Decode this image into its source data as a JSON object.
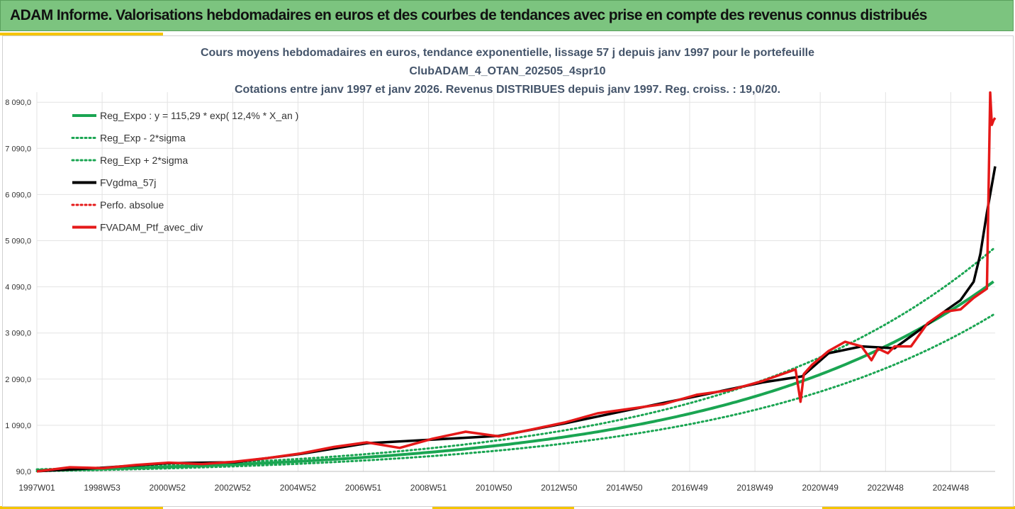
{
  "header": {
    "title": "ADAM Informe. Valorisations hebdomadaires en euros et des courbes de tendances avec prise en compte des revenus connus distribués"
  },
  "chart_data": {
    "type": "line",
    "title_lines": [
      "Cours moyens hebdomadaires  en euros, tendance exponentielle, lissage 57 j depuis janv 1997 pour le portefeuille",
      "ClubADAM_4_OTAN_202505_4spr10",
      "Cotations entre janv 1997 et janv 2026. Revenus DISTRIBUES depuis janv 1997. Reg. croiss. : 19,0/20."
    ],
    "x_tick_labels": [
      "1997W01",
      "1998W53",
      "2000W52",
      "2002W52",
      "2004W52",
      "2006W51",
      "2008W51",
      "2010W50",
      "2012W50",
      "2014W50",
      "2016W49",
      "2018W49",
      "2020W49",
      "2022W48",
      "2024W48"
    ],
    "x_range": [
      1997.0,
      2026.05
    ],
    "y_tick_labels": [
      "90,0",
      "1 090,0",
      "2 090,0",
      "3 090,0",
      "4 090,0",
      "5 090,0",
      "6 090,0",
      "7 090,0",
      "8 090,0"
    ],
    "ylim": [
      90,
      8600
    ],
    "grid": true,
    "legend_position": "top-left",
    "regression": {
      "a": 115.29,
      "rate": 0.124,
      "sigma_factor_minus": 0.83,
      "sigma_factor_plus": 1.17
    },
    "legend": [
      {
        "label": "Reg_Expo : y = 115,29 * exp( 12,4% *  X_an )",
        "color": "#1aa552",
        "style": "solid",
        "width": 4
      },
      {
        "label": "Reg_Exp - 2*sigma",
        "color": "#1aa552",
        "style": "dotted",
        "width": 3
      },
      {
        "label": "Reg_Exp + 2*sigma",
        "color": "#1aa552",
        "style": "dotted",
        "width": 3
      },
      {
        "label": "FVgdma_57j",
        "color": "#000000",
        "style": "solid",
        "width": 4
      },
      {
        "label": "Perfo. absolue",
        "color": "#e51919",
        "style": "dotted",
        "width": 3
      },
      {
        "label": "FVADAM_Ptf_avec_div",
        "color": "#e51919",
        "style": "solid",
        "width": 4
      }
    ],
    "series": [
      {
        "name": "FVADAM_Ptf_avec_div",
        "color": "#e51919",
        "x": [
          1997.0,
          1998.0,
          1999.0,
          2000.0,
          2001.0,
          2002.0,
          2003.0,
          2004.0,
          2005.0,
          2006.0,
          2007.0,
          2008.0,
          2009.0,
          2010.0,
          2011.0,
          2012.0,
          2013.0,
          2014.0,
          2015.0,
          2016.0,
          2017.0,
          2018.0,
          2019.0,
          2020.0,
          2020.15,
          2020.25,
          2020.5,
          2021.0,
          2021.5,
          2022.0,
          2022.3,
          2022.5,
          2022.8,
          2023.0,
          2023.5,
          2024.0,
          2024.5,
          2025.0,
          2025.4,
          2025.8,
          2025.9,
          2025.95,
          2026.0,
          2026.05
        ],
        "y": [
          90,
          180,
          160,
          230,
          280,
          250,
          300,
          380,
          480,
          620,
          720,
          600,
          800,
          950,
          850,
          1000,
          1150,
          1350,
          1450,
          1550,
          1750,
          1850,
          2050,
          2300,
          1600,
          2200,
          2400,
          2700,
          2900,
          2800,
          2500,
          2750,
          2650,
          2800,
          2800,
          3300,
          3550,
          3600,
          3850,
          4050,
          8300,
          7600,
          7700,
          7750
        ]
      },
      {
        "name": "FVgdma_57j",
        "color": "#000000",
        "x": [
          1997.0,
          1999.0,
          2001.0,
          2003.0,
          2005.0,
          2007.0,
          2009.0,
          2011.0,
          2013.0,
          2015.0,
          2017.0,
          2019.0,
          2020.2,
          2021.0,
          2022.0,
          2023.0,
          2024.0,
          2024.6,
          2025.0,
          2025.4,
          2025.6,
          2025.8,
          2026.0,
          2026.05
        ],
        "y": [
          95,
          170,
          270,
          290,
          470,
          700,
          780,
          860,
          1130,
          1430,
          1720,
          2020,
          2150,
          2650,
          2800,
          2760,
          3280,
          3600,
          3800,
          4200,
          4800,
          5700,
          6500,
          6700
        ]
      }
    ]
  }
}
